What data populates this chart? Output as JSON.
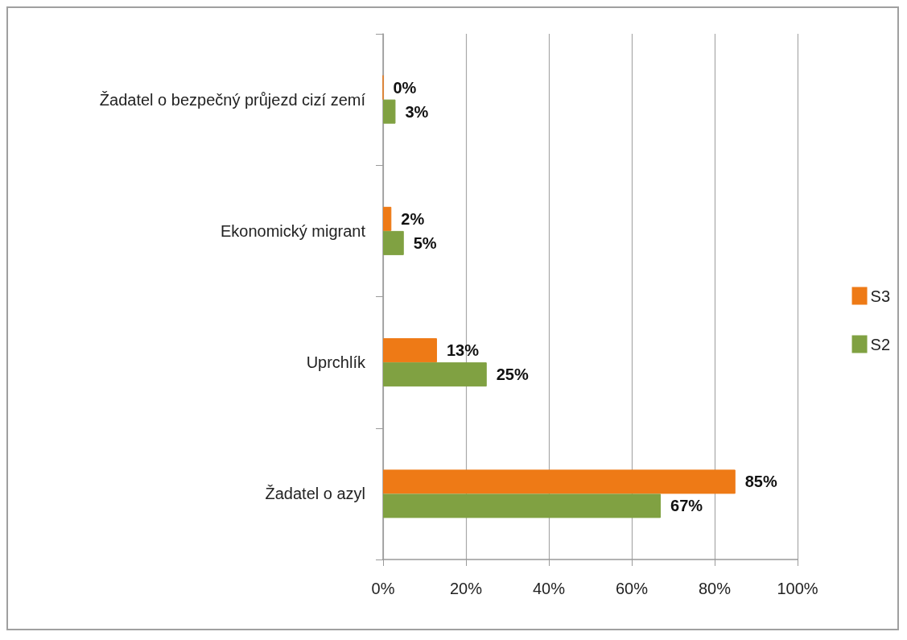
{
  "chart_data": {
    "type": "bar",
    "orientation": "horizontal",
    "categories": [
      "Žadatel o bezpečný průjezd cizí zemí",
      "Ekonomický migrant",
      "Uprchlík",
      "Žadatel o azyl"
    ],
    "series": [
      {
        "name": "S3",
        "color": "#ee7a16",
        "values": [
          0,
          2,
          13,
          85
        ],
        "value_labels": [
          "0%",
          "2%",
          "13%",
          "85%"
        ]
      },
      {
        "name": "S2",
        "color": "#80a142",
        "values": [
          3,
          5,
          25,
          67
        ],
        "value_labels": [
          "3%",
          "5%",
          "25%",
          "67%"
        ]
      }
    ],
    "xlim": [
      0,
      100
    ],
    "xticks": [
      {
        "value": 0,
        "label": "0%"
      },
      {
        "value": 20,
        "label": "20%"
      },
      {
        "value": 40,
        "label": "40%"
      },
      {
        "value": 60,
        "label": "60%"
      },
      {
        "value": 80,
        "label": "80%"
      },
      {
        "value": 100,
        "label": "100%"
      }
    ],
    "grid": "x",
    "legend": "right"
  }
}
